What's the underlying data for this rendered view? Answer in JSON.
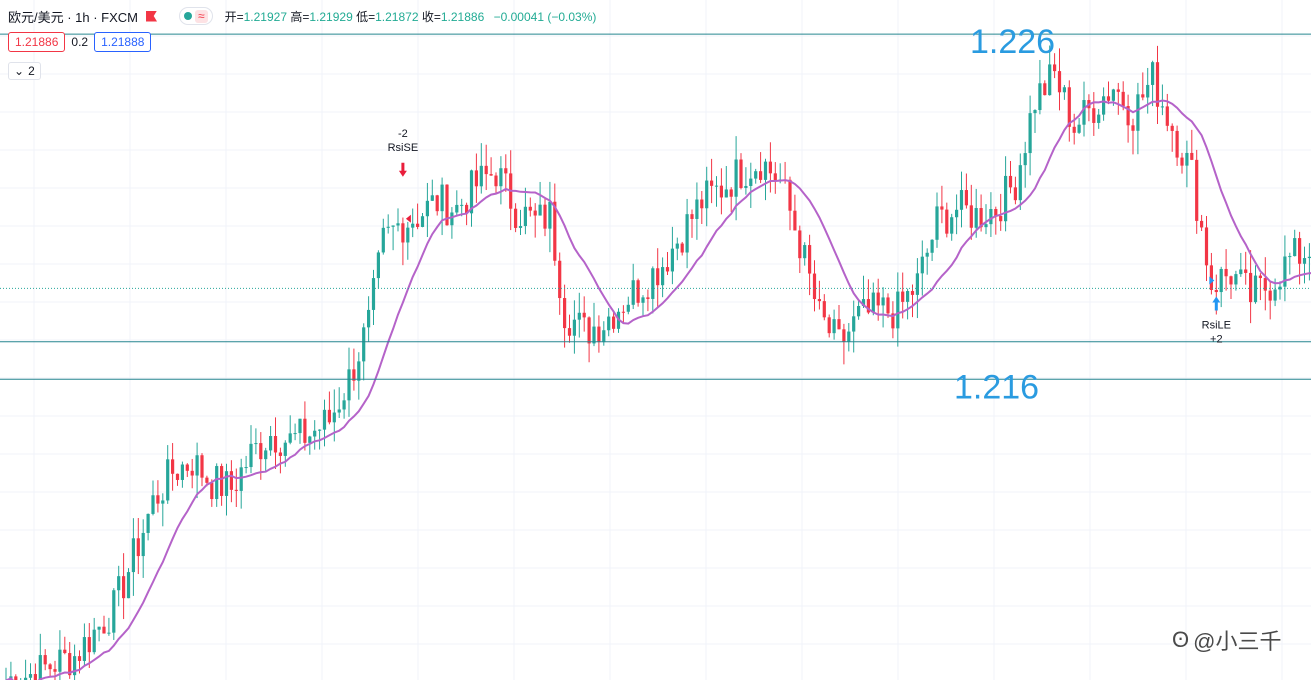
{
  "header": {
    "symbol": "欧元/美元 · 1h · FXCM",
    "indicator_dot_color": "#26a69a",
    "wave_icon": "≈",
    "ohlc": {
      "open_label": "开=",
      "open": "1.21927",
      "high_label": "高=",
      "high": "1.21929",
      "low_label": "低=",
      "low": "1.21872",
      "close_label": "收=",
      "close": "1.21886",
      "change": "−0.00041 (−0.03%)"
    }
  },
  "quote": {
    "bid": "1.21886",
    "spread": "0.2",
    "ask": "1.21888"
  },
  "indicator_toggle": {
    "label": "2"
  },
  "watermark": {
    "text": "@小三千"
  },
  "colors": {
    "up": "#26a69a",
    "down": "#f23645",
    "ma": "#b563c9",
    "hline": "#26868f",
    "level_text": "#2a9be0",
    "signal_up": "#2196f3",
    "signal_down": "#e91e3c"
  },
  "chart_data": {
    "type": "candlestick",
    "ylim": [
      1.2074,
      1.2273
    ],
    "levels": [
      {
        "value": 1.2263,
        "label": "1.226"
      },
      {
        "value": 1.2173
      },
      {
        "value": 1.2162,
        "label": "1.216"
      }
    ],
    "last_price": 1.21886,
    "signals": [
      {
        "text": "-2",
        "text2": "RsiSE",
        "direction": "down",
        "bar_index": 81,
        "price": 1.2216
      },
      {
        "text": "RsiLE",
        "text2": "+2",
        "direction": "up",
        "bar_index": 247,
        "price": 1.2188
      }
    ],
    "segments": [
      [
        0,
        1.2074
      ],
      [
        6,
        1.2076
      ],
      [
        10,
        1.2079
      ],
      [
        14,
        1.2081
      ],
      [
        18,
        1.2088
      ],
      [
        22,
        1.2095
      ],
      [
        26,
        1.211
      ],
      [
        30,
        1.2126
      ],
      [
        34,
        1.2135
      ],
      [
        38,
        1.2138
      ],
      [
        42,
        1.2132
      ],
      [
        46,
        1.213
      ],
      [
        50,
        1.214
      ],
      [
        54,
        1.2146
      ],
      [
        58,
        1.2144
      ],
      [
        62,
        1.2146
      ],
      [
        66,
        1.215
      ],
      [
        70,
        1.2162
      ],
      [
        74,
        1.2178
      ],
      [
        77,
        1.2202
      ],
      [
        80,
        1.2207
      ],
      [
        84,
        1.221
      ],
      [
        88,
        1.2214
      ],
      [
        92,
        1.2212
      ],
      [
        96,
        1.2219
      ],
      [
        100,
        1.2223
      ],
      [
        104,
        1.2212
      ],
      [
        108,
        1.2208
      ],
      [
        111,
        1.221
      ],
      [
        114,
        1.2182
      ],
      [
        118,
        1.2176
      ],
      [
        122,
        1.2179
      ],
      [
        126,
        1.2185
      ],
      [
        130,
        1.219
      ],
      [
        134,
        1.2196
      ],
      [
        138,
        1.2205
      ],
      [
        142,
        1.2214
      ],
      [
        146,
        1.2218
      ],
      [
        150,
        1.2223
      ],
      [
        154,
        1.2226
      ],
      [
        158,
        1.222
      ],
      [
        162,
        1.2202
      ],
      [
        166,
        1.218
      ],
      [
        170,
        1.2172
      ],
      [
        174,
        1.218
      ],
      [
        178,
        1.2182
      ],
      [
        182,
        1.2182
      ],
      [
        186,
        1.219
      ],
      [
        190,
        1.2208
      ],
      [
        194,
        1.2212
      ],
      [
        198,
        1.221
      ],
      [
        202,
        1.2212
      ],
      [
        206,
        1.222
      ],
      [
        210,
        1.2244
      ],
      [
        214,
        1.2251
      ],
      [
        218,
        1.2236
      ],
      [
        222,
        1.2242
      ],
      [
        226,
        1.2248
      ],
      [
        230,
        1.224
      ],
      [
        234,
        1.225
      ],
      [
        238,
        1.2236
      ],
      [
        242,
        1.2222
      ],
      [
        246,
        1.219
      ],
      [
        250,
        1.2193
      ],
      [
        254,
        1.2186
      ],
      [
        258,
        1.219
      ],
      [
        262,
        1.2197
      ],
      [
        266,
        1.22
      ],
      [
        270,
        1.2196
      ],
      [
        274,
        1.219
      ],
      [
        278,
        1.2195
      ],
      [
        282,
        1.2192
      ],
      [
        285,
        1.2189
      ]
    ]
  }
}
